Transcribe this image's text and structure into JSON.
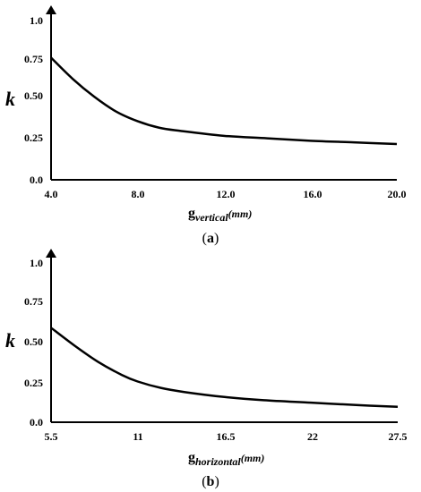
{
  "chart_data": [
    {
      "type": "line",
      "panel_label": {
        "open": "(",
        "letter": "a",
        "close": ")"
      },
      "ylabel": "k",
      "xlabel": {
        "main": "g",
        "sub": "vertical",
        "unit": "(mm)"
      },
      "xlim": [
        4.0,
        20.0
      ],
      "ylim": [
        0.0,
        1.0
      ],
      "xticks": [
        "4.0",
        "8.0",
        "12.0",
        "16.0",
        "20.0"
      ],
      "yticks": [
        "0.0",
        "0.25",
        "0.50",
        "0.75",
        "1.0"
      ],
      "xtick_values": [
        4,
        8,
        12,
        16,
        20
      ],
      "ytick_values": [
        0,
        0.25,
        0.5,
        0.75,
        1.0
      ],
      "grid": false,
      "series": [
        {
          "x": [
            4.0,
            5.0,
            6.0,
            7.0,
            8.0,
            9.0,
            10.0,
            12.0,
            14.0,
            16.0,
            18.0,
            20.0
          ],
          "values": [
            0.75,
            0.62,
            0.51,
            0.42,
            0.36,
            0.32,
            0.3,
            0.27,
            0.255,
            0.24,
            0.23,
            0.22
          ]
        }
      ]
    },
    {
      "type": "line",
      "panel_label": {
        "open": "(",
        "letter": "b",
        "close": ")"
      },
      "ylabel": "k",
      "xlabel": {
        "main": "g",
        "sub": "horizontal",
        "unit": "(mm)"
      },
      "xlim": [
        5.5,
        27.5
      ],
      "ylim": [
        0.0,
        1.0
      ],
      "xticks": [
        "5.5",
        "11",
        "16.5",
        "22",
        "27.5"
      ],
      "yticks": [
        "0.0",
        "0.25",
        "0.50",
        "0.75",
        "1.0"
      ],
      "xtick_values": [
        5.5,
        11,
        16.5,
        22,
        27.5
      ],
      "ytick_values": [
        0,
        0.25,
        0.5,
        0.75,
        1.0
      ],
      "grid": false,
      "series": [
        {
          "x": [
            5.5,
            7.0,
            8.5,
            10.0,
            11.0,
            12.5,
            14.0,
            16.5,
            19.0,
            22.0,
            25.0,
            27.5
          ],
          "values": [
            0.58,
            0.47,
            0.37,
            0.29,
            0.25,
            0.21,
            0.185,
            0.155,
            0.135,
            0.12,
            0.105,
            0.095
          ]
        }
      ]
    }
  ]
}
